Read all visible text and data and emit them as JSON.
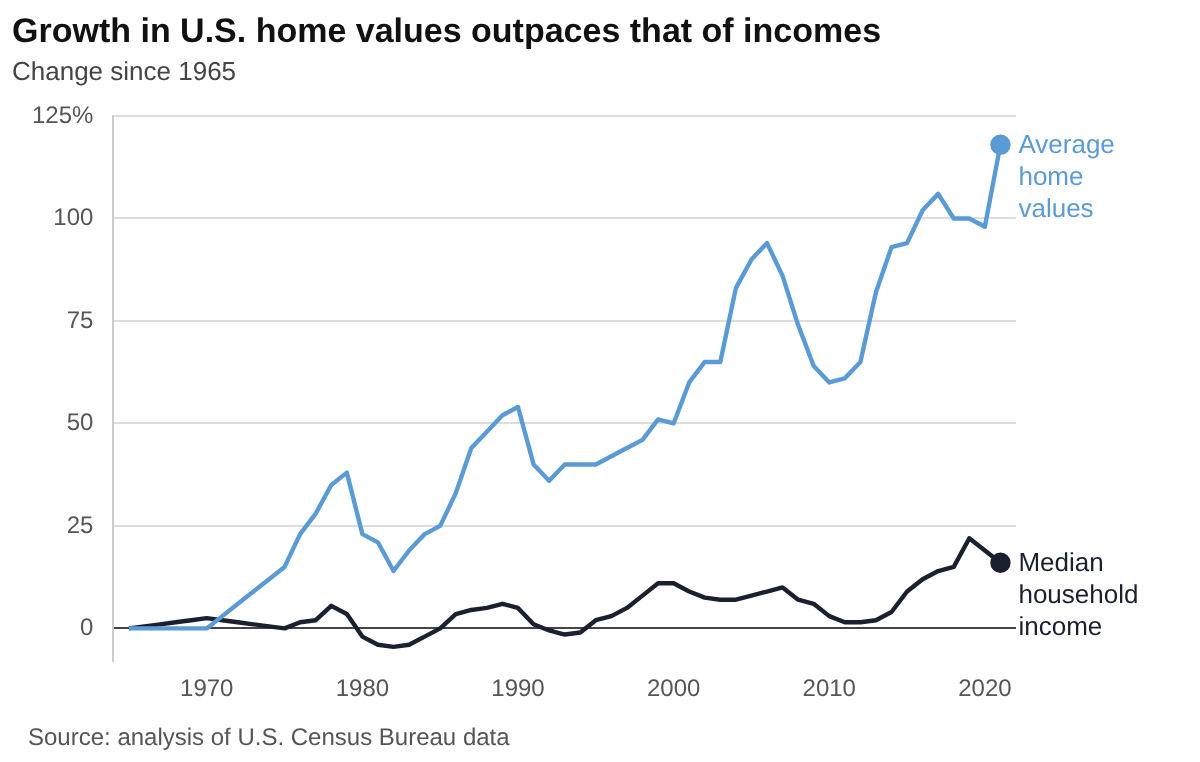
{
  "chart_data": {
    "type": "line",
    "title": "Growth in U.S. home values outpaces that of incomes",
    "subtitle": "Change since 1965",
    "x": [
      1965,
      1966,
      1967,
      1968,
      1969,
      1970,
      1971,
      1972,
      1973,
      1974,
      1975,
      1976,
      1977,
      1978,
      1979,
      1980,
      1981,
      1982,
      1983,
      1984,
      1985,
      1986,
      1987,
      1988,
      1989,
      1990,
      1991,
      1992,
      1993,
      1994,
      1995,
      1996,
      1997,
      1998,
      1999,
      2000,
      2001,
      2002,
      2003,
      2004,
      2005,
      2006,
      2007,
      2008,
      2009,
      2010,
      2011,
      2012,
      2013,
      2014,
      2015,
      2016,
      2017,
      2018,
      2019,
      2020,
      2021
    ],
    "series": [
      {
        "name": "Average home values",
        "color": "#5b9bd5",
        "values": [
          0,
          0,
          0,
          0,
          0,
          0,
          3,
          6,
          9,
          12,
          15,
          23,
          28,
          35,
          38,
          23,
          21,
          14,
          19,
          23,
          25,
          33,
          44,
          48,
          52,
          54,
          40,
          36,
          40,
          40,
          40,
          42,
          44,
          46,
          51,
          50,
          60,
          65,
          65,
          83,
          90,
          94,
          86,
          74,
          64,
          60,
          61,
          65,
          82,
          93,
          94,
          102,
          106,
          100,
          100,
          98,
          118
        ]
      },
      {
        "name": "Median household income",
        "color": "#1b2030",
        "values": [
          0,
          0.5,
          1,
          1.5,
          2,
          2.5,
          2,
          1.5,
          1,
          0.5,
          0,
          1.5,
          2,
          5.5,
          3.5,
          -2,
          -4,
          -4.5,
          -4,
          -2,
          0,
          3.5,
          4.5,
          5,
          6,
          5,
          1,
          -0.5,
          -1.5,
          -1,
          2,
          3,
          5,
          8,
          11,
          11,
          9,
          7.5,
          7,
          7,
          8,
          9,
          10,
          7,
          6,
          3,
          1.5,
          1.5,
          2,
          4,
          9,
          12,
          14,
          15,
          22,
          19,
          16
        ]
      }
    ],
    "xlim": [
      1964,
      2022
    ],
    "xticks": [
      1970,
      1980,
      1990,
      2000,
      2010,
      2020
    ],
    "ylim": [
      -8,
      125
    ],
    "yticks": [
      0,
      25,
      50,
      75,
      100,
      {
        "value": 125,
        "label": "125%"
      }
    ],
    "grid": "y",
    "legend": false,
    "annotations": [
      "Source: analysis of U.S. Census Bureau data"
    ]
  }
}
